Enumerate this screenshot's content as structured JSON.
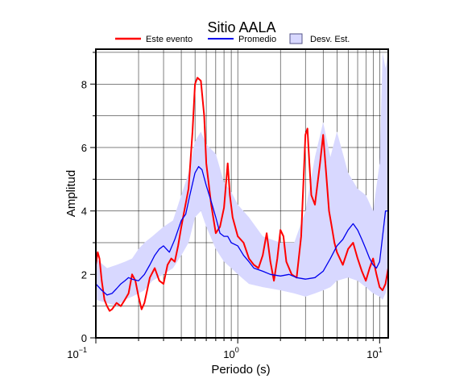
{
  "chart_data": {
    "type": "line",
    "title": "Sitio AALA",
    "xlabel": "Periodo (s)",
    "ylabel": "Amplitud",
    "x_scale": "log",
    "xlim": [
      0.1,
      11.5
    ],
    "ylim": [
      0,
      9.1
    ],
    "grid": true,
    "legend_placement": "top-center",
    "x_tick_labels": [
      {
        "base": "10",
        "exp": "−1",
        "value": 0.1
      },
      {
        "base": "10",
        "exp": "0",
        "value": 1
      },
      {
        "base": "10",
        "exp": "1",
        "value": 10
      }
    ],
    "y_ticks": [
      0,
      2,
      4,
      6,
      8
    ],
    "legend": {
      "event_label": "Este evento",
      "mean_label": "Promedio",
      "std_label": "Desv. Est."
    },
    "colors": {
      "event": "#ff0000",
      "mean": "#0000ee",
      "std_fill": "#d8d8ff",
      "std_border": "#555588"
    },
    "series": [
      {
        "name": "Este evento",
        "x": [
          0.1,
          0.103,
          0.106,
          0.11,
          0.115,
          0.12,
          0.125,
          0.13,
          0.14,
          0.15,
          0.16,
          0.17,
          0.18,
          0.19,
          0.2,
          0.21,
          0.22,
          0.23,
          0.24,
          0.26,
          0.28,
          0.3,
          0.32,
          0.34,
          0.36,
          0.38,
          0.4,
          0.42,
          0.45,
          0.48,
          0.5,
          0.52,
          0.55,
          0.58,
          0.6,
          0.65,
          0.7,
          0.75,
          0.8,
          0.85,
          0.88,
          0.92,
          1.0,
          1.1,
          1.2,
          1.3,
          1.4,
          1.5,
          1.6,
          1.7,
          1.8,
          1.9,
          2.0,
          2.1,
          2.2,
          2.4,
          2.6,
          2.8,
          3.0,
          3.1,
          3.2,
          3.3,
          3.5,
          3.8,
          4.0,
          4.2,
          4.4,
          4.6,
          4.8,
          5.0,
          5.5,
          6.0,
          6.5,
          7.0,
          7.5,
          8.0,
          8.5,
          9.0,
          9.5,
          10.0,
          10.5,
          11.0,
          11.5
        ],
        "values": [
          2.3,
          2.7,
          2.5,
          1.8,
          1.2,
          1.0,
          0.85,
          0.9,
          1.1,
          1.0,
          1.2,
          1.4,
          2.0,
          1.8,
          1.3,
          0.9,
          1.1,
          1.5,
          1.9,
          2.2,
          1.8,
          1.7,
          2.3,
          2.5,
          2.4,
          2.9,
          3.5,
          4.0,
          4.7,
          6.5,
          8.0,
          8.2,
          8.1,
          7.0,
          5.5,
          4.2,
          3.3,
          3.5,
          4.1,
          5.5,
          4.5,
          3.8,
          3.2,
          3.0,
          2.5,
          2.3,
          2.2,
          2.6,
          3.3,
          2.4,
          1.8,
          2.5,
          3.4,
          3.2,
          2.4,
          2.0,
          1.9,
          3.2,
          6.4,
          6.6,
          5.5,
          4.5,
          4.2,
          5.5,
          6.4,
          5.2,
          4.0,
          3.5,
          3.0,
          2.7,
          2.3,
          2.8,
          3.0,
          2.5,
          2.1,
          1.8,
          2.2,
          2.5,
          2.0,
          1.6,
          1.5,
          1.7,
          2.2
        ]
      },
      {
        "name": "Promedio",
        "x": [
          0.1,
          0.11,
          0.12,
          0.13,
          0.14,
          0.15,
          0.16,
          0.17,
          0.18,
          0.2,
          0.22,
          0.24,
          0.26,
          0.28,
          0.3,
          0.33,
          0.36,
          0.4,
          0.43,
          0.46,
          0.5,
          0.53,
          0.56,
          0.6,
          0.65,
          0.7,
          0.75,
          0.8,
          0.85,
          0.9,
          1.0,
          1.1,
          1.2,
          1.3,
          1.5,
          1.7,
          2.0,
          2.3,
          2.6,
          3.0,
          3.5,
          4.0,
          4.5,
          5.0,
          5.5,
          6.0,
          6.5,
          7.0,
          7.5,
          8.0,
          8.5,
          9.0,
          9.5,
          10.0,
          10.5,
          11.0,
          11.5
        ],
        "values": [
          1.7,
          1.5,
          1.35,
          1.4,
          1.55,
          1.7,
          1.8,
          1.9,
          1.85,
          1.8,
          2.0,
          2.3,
          2.6,
          2.8,
          2.9,
          2.7,
          3.1,
          3.7,
          3.9,
          4.5,
          5.2,
          5.4,
          5.3,
          4.8,
          4.3,
          3.8,
          3.3,
          3.2,
          3.2,
          3.0,
          2.9,
          2.6,
          2.4,
          2.2,
          2.1,
          2.0,
          1.95,
          2.0,
          1.9,
          1.85,
          1.9,
          2.1,
          2.5,
          2.9,
          3.1,
          3.4,
          3.6,
          3.4,
          3.1,
          2.8,
          2.5,
          2.3,
          2.2,
          2.4,
          3.2,
          4.0,
          4.0
        ]
      }
    ],
    "std_band": {
      "name": "Desv. Est.",
      "x": [
        0.1,
        0.12,
        0.14,
        0.16,
        0.18,
        0.2,
        0.22,
        0.25,
        0.3,
        0.35,
        0.4,
        0.45,
        0.5,
        0.55,
        0.6,
        0.7,
        0.8,
        0.9,
        1.0,
        1.2,
        1.5,
        2.0,
        2.5,
        3.0,
        3.5,
        4.0,
        4.5,
        5.0,
        6.0,
        7.0,
        8.0,
        9.0,
        10.0,
        10.5,
        11.0,
        11.5
      ],
      "upper": [
        2.5,
        2.2,
        2.3,
        2.4,
        2.5,
        2.8,
        3.0,
        3.2,
        3.5,
        3.7,
        4.5,
        5.2,
        6.2,
        6.5,
        6.1,
        5.8,
        4.9,
        4.6,
        4.2,
        3.8,
        3.2,
        3.0,
        3.0,
        4.0,
        5.7,
        6.8,
        5.7,
        6.5,
        5.2,
        4.7,
        4.5,
        4.0,
        5.5,
        9.0,
        8.5,
        9.0
      ],
      "lower": [
        1.2,
        1.1,
        1.0,
        1.2,
        1.3,
        1.4,
        1.5,
        1.8,
        2.0,
        2.2,
        2.6,
        3.0,
        3.8,
        4.0,
        3.5,
        2.8,
        2.4,
        2.2,
        2.0,
        1.7,
        1.6,
        1.5,
        1.4,
        1.3,
        1.4,
        1.5,
        1.6,
        1.8,
        1.9,
        1.8,
        1.6,
        1.4,
        1.3,
        1.2,
        1.4,
        1.7
      ]
    }
  }
}
